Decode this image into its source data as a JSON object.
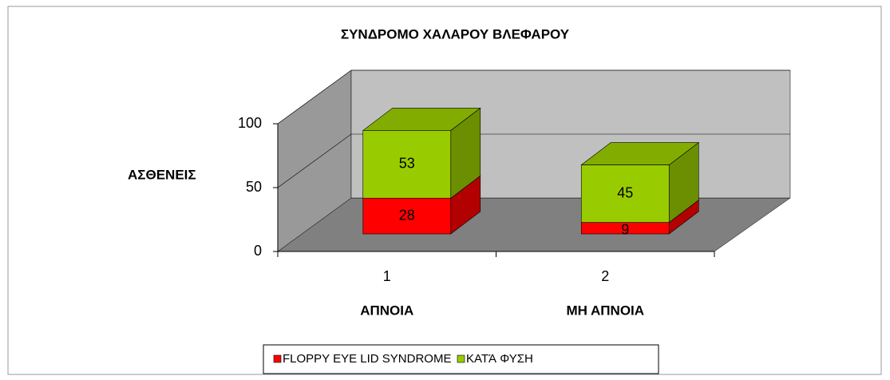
{
  "chart_data": {
    "type": "bar3d_stacked",
    "title": "ΣΥΝΔΡΟΜΟ ΧΑΛΑΡΟΥ ΒΛΕΦΑΡΟΥ",
    "ylabel": "ΑΣΘΕΝΕΙΣ",
    "categories": [
      "1",
      "2"
    ],
    "category_names": [
      "ΑΠΝΟΙΑ",
      "ΜΗ ΑΠΝΟΙΑ"
    ],
    "series": [
      {
        "name": "FLOPPY EYE LID SYNDROME",
        "color": "#ff0000",
        "values": [
          28,
          9
        ]
      },
      {
        "name": "ΚΑΤΆ ΦΥΣΗ",
        "color": "#99cc00",
        "values": [
          53,
          45
        ]
      }
    ],
    "ylim": [
      0,
      100
    ],
    "yticks": [
      0,
      50,
      100
    ],
    "grid": true,
    "legend": "bottom"
  }
}
